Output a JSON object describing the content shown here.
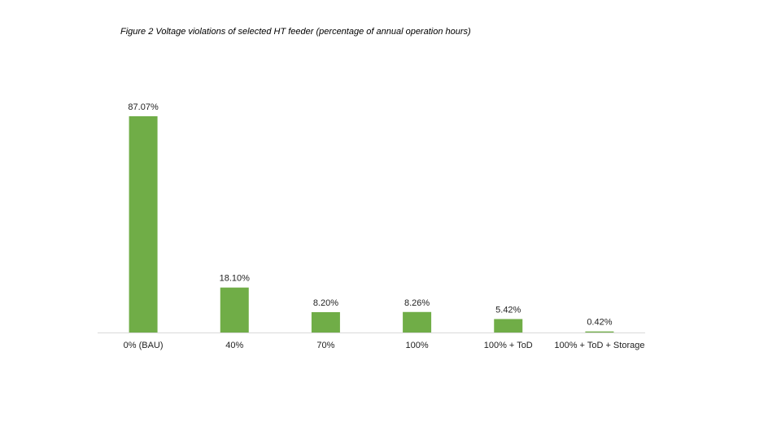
{
  "figure_title": "Figure 2 Voltage violations of selected HT feeder (percentage of annual operation hours)",
  "colors": {
    "bar": "#70AD47",
    "axis": "#d9d9d9"
  },
  "chart_data": {
    "type": "bar",
    "title": "",
    "xlabel": "",
    "ylabel": "",
    "categories": [
      "0% (BAU)",
      "40%",
      "70%",
      "100%",
      "100% + ToD",
      "100% + ToD + Storage"
    ],
    "values": [
      87.07,
      18.1,
      8.2,
      8.26,
      5.42,
      0.42
    ],
    "data_labels": [
      "87.07%",
      "18.10%",
      "8.20%",
      "8.26%",
      "5.42%",
      "0.42%"
    ],
    "ylim": [
      0,
      87.07
    ],
    "grid": false,
    "legend": "none"
  }
}
